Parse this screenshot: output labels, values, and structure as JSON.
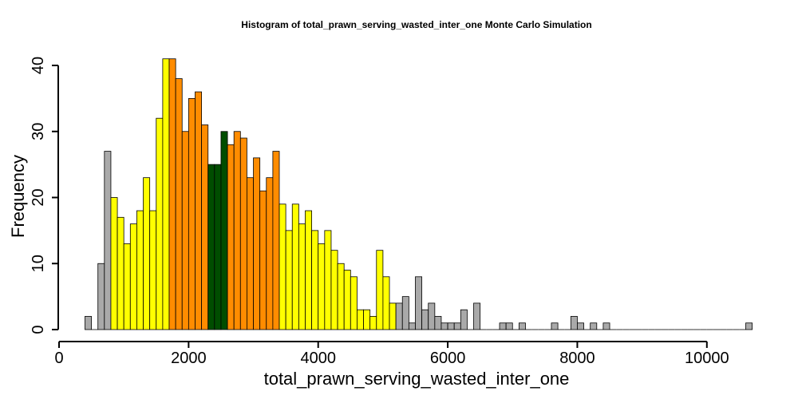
{
  "chart_data": {
    "type": "bar",
    "title": "Histogram of  total_prawn_serving_wasted_inter_one  Monte Carlo Simulation",
    "xlabel": "total_prawn_serving_wasted_inter_one",
    "ylabel": "Frequency",
    "xlim": [
      400,
      10700
    ],
    "ylim": [
      0,
      40
    ],
    "x_ticks": [
      0,
      2000,
      4000,
      6000,
      8000,
      10000
    ],
    "y_ticks": [
      0,
      10,
      20,
      30,
      40
    ],
    "bin_width": 100,
    "bin_starts": [
      400,
      500,
      600,
      700,
      800,
      900,
      1000,
      1100,
      1200,
      1300,
      1400,
      1500,
      1600,
      1700,
      1800,
      1900,
      2000,
      2100,
      2200,
      2300,
      2400,
      2500,
      2600,
      2700,
      2800,
      2900,
      3000,
      3100,
      3200,
      3300,
      3400,
      3500,
      3600,
      3700,
      3800,
      3900,
      4000,
      4100,
      4200,
      4300,
      4400,
      4500,
      4600,
      4700,
      4800,
      4900,
      5000,
      5100,
      5200,
      5300,
      5400,
      5500,
      5600,
      5700,
      5800,
      5900,
      6000,
      6100,
      6200,
      6300,
      6400,
      6500,
      6600,
      6700,
      6800,
      6900,
      7000,
      7100,
      7200,
      7300,
      7400,
      7500,
      7600,
      7700,
      7800,
      7900,
      8000,
      8100,
      8200,
      8300,
      8400,
      8500,
      8600,
      8700,
      8800,
      8900,
      9000,
      9100,
      9200,
      9300,
      9400,
      9500,
      9600,
      9700,
      9800,
      9900,
      10000,
      10100,
      10200,
      10300,
      10400,
      10500,
      10600
    ],
    "values": [
      2,
      0,
      10,
      27,
      20,
      17,
      13,
      16,
      18,
      23,
      18,
      32,
      41,
      41,
      38,
      30,
      35,
      36,
      31,
      25,
      25,
      30,
      28,
      30,
      29,
      23,
      26,
      21,
      23,
      27,
      19,
      15,
      19,
      16,
      18,
      15,
      13,
      15,
      12,
      10,
      9,
      8,
      3,
      3,
      2,
      12,
      8,
      4,
      4,
      5,
      1,
      8,
      3,
      4,
      2,
      1,
      1,
      1,
      3,
      0,
      4,
      0,
      0,
      0,
      1,
      1,
      0,
      1,
      0,
      0,
      0,
      0,
      1,
      0,
      0,
      2,
      1,
      0,
      1,
      0,
      1,
      0,
      0,
      0,
      0,
      0,
      0,
      0,
      0,
      0,
      0,
      0,
      0,
      0,
      0,
      0,
      0,
      0,
      0,
      0,
      0,
      0,
      1
    ],
    "color_bands": [
      {
        "from": 400,
        "to": 800,
        "color": "#a9a9a9"
      },
      {
        "from": 800,
        "to": 1700,
        "color": "#ffff00"
      },
      {
        "from": 1700,
        "to": 2300,
        "color": "#ff8c00"
      },
      {
        "from": 2300,
        "to": 2600,
        "color": "#004d00"
      },
      {
        "from": 2600,
        "to": 3400,
        "color": "#ff8c00"
      },
      {
        "from": 3400,
        "to": 5200,
        "color": "#ffff00"
      },
      {
        "from": 5200,
        "to": 10700,
        "color": "#a9a9a9"
      }
    ],
    "grid": false,
    "legend": "none"
  }
}
